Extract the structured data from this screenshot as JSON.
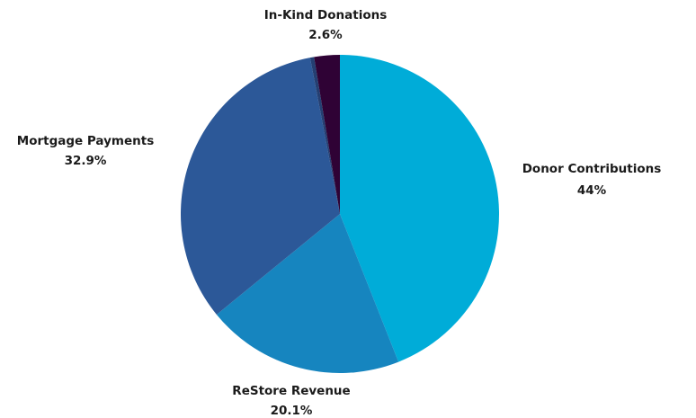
{
  "chart_data": {
    "type": "pie",
    "slices": [
      {
        "label": "Donor Contributions",
        "value": 44,
        "value_label": "44%",
        "color": "#00acd8"
      },
      {
        "label": "ReStore Revenue",
        "value": 20.1,
        "value_label": "20.1%",
        "color": "#1685bf"
      },
      {
        "label": "Mortgage Payments",
        "value": 32.9,
        "value_label": "32.9%",
        "color": "#2c5898"
      },
      {
        "label": "",
        "value": 0.4,
        "value_label": "",
        "color": "#243f72"
      },
      {
        "label": "In-Kind Donations",
        "value": 2.6,
        "value_label": "2.6%",
        "color": "#2f0235"
      }
    ],
    "start_angle_deg": 0,
    "direction": "clockwise",
    "legend": "none"
  }
}
